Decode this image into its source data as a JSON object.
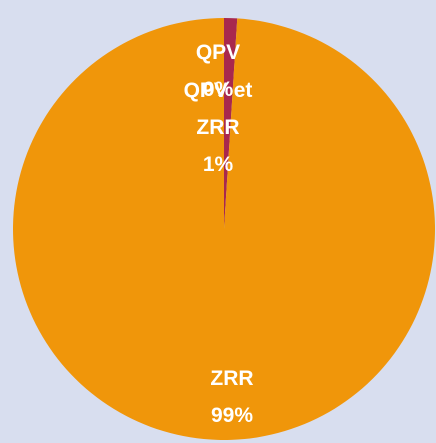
{
  "chart_data": {
    "type": "pie",
    "categories": [
      "QPV",
      "QPV et ZRR",
      "ZRR"
    ],
    "values": [
      0,
      1,
      99
    ],
    "value_labels": [
      "0%",
      "1%",
      "99%"
    ],
    "colors": [
      "#7b2c6e",
      "#a8284e",
      "#f0960a"
    ]
  }
}
